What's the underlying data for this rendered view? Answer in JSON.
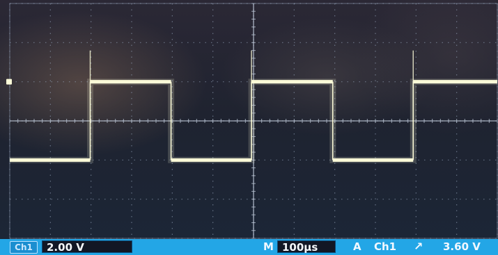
{
  "chart_data": {
    "type": "line",
    "title": "",
    "xlabel": "",
    "ylabel": "",
    "grid": true,
    "divisions": {
      "x": 12,
      "y": 6
    },
    "xlim": [
      0,
      1200
    ],
    "ylim": [
      -6,
      6
    ],
    "series": [
      {
        "name": "",
        "color": "#fcfbd8",
        "x": [
          0,
          198,
          198,
          397,
          397,
          595,
          595,
          795,
          795,
          993,
          993,
          1200
        ],
        "y": [
          -2.0,
          -2.0,
          2.0,
          2.0,
          -2.0,
          -2.0,
          2.0,
          2.0,
          -2.0,
          -2.0,
          2.0,
          2.0
        ]
      }
    ]
  },
  "status_bar": {
    "channel_label": "Ch1",
    "volts_per_div": "2.00 V",
    "mode_label": "M",
    "time_per_div": "100µs",
    "trigger_mode": "A",
    "trigger_channel": "Ch1",
    "trigger_edge": "rising-edge-icon",
    "trigger_level": "3.60 V"
  },
  "colors": {
    "trace": "#fcfbd8",
    "status_bar": "#23a6e6",
    "grid": "#9fb0c8"
  }
}
